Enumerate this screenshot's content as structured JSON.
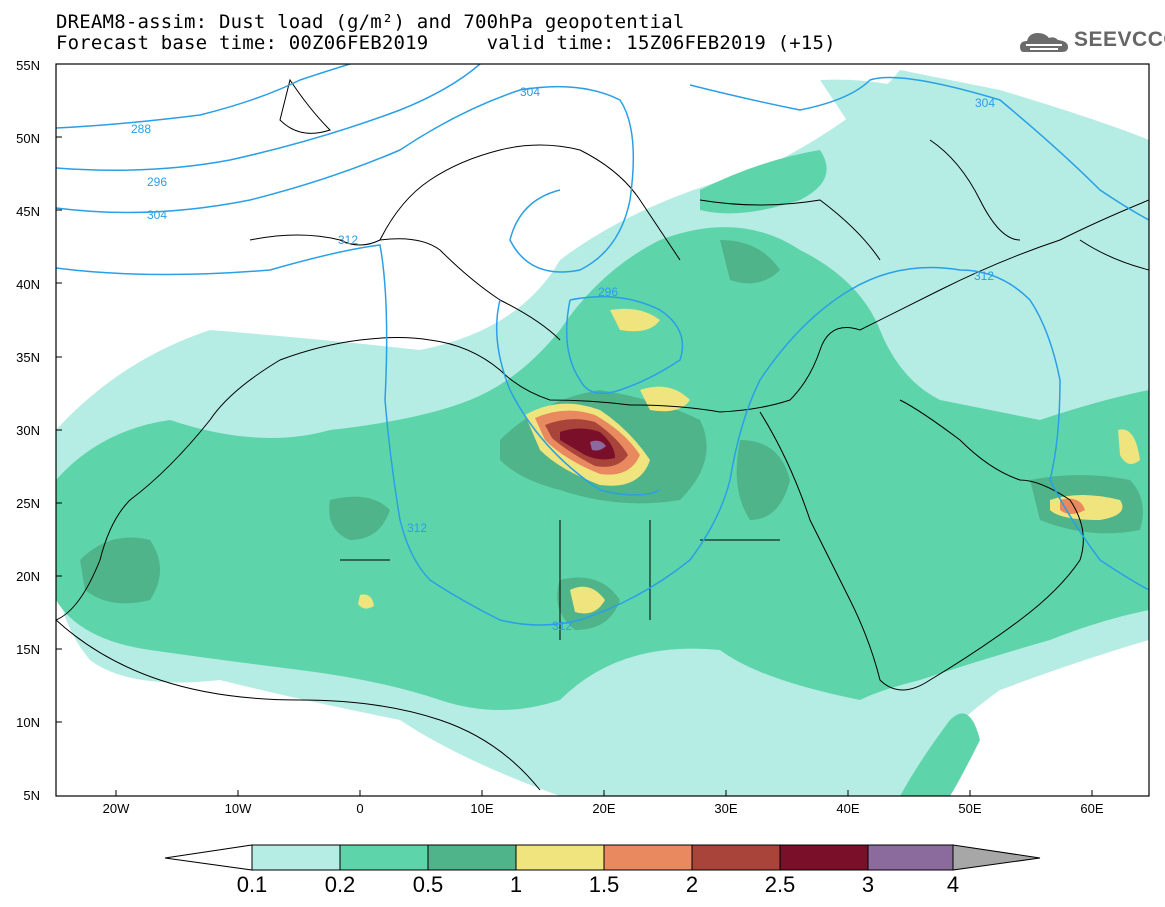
{
  "header": {
    "title_line1": "DREAM8-assim: Dust load (g/m²) and 700hPa geopotential",
    "title_line2": "Forecast base time: 00Z06FEB2019     valid time: 15Z06FEB2019 (+15)",
    "logo_text": "SEEVCCC"
  },
  "axes": {
    "lat_labels": [
      "55N",
      "50N",
      "45N",
      "40N",
      "35N",
      "30N",
      "25N",
      "20N",
      "15N",
      "10N",
      "5N"
    ],
    "lon_labels": [
      "20W",
      "10W",
      "0",
      "10E",
      "20E",
      "30E",
      "40E",
      "50E",
      "60E"
    ]
  },
  "contours": {
    "labels": [
      "288",
      "296",
      "304",
      "312",
      "296",
      "304",
      "312",
      "304",
      "312",
      "312"
    ],
    "line_color": "#2a9fe6"
  },
  "colorbar": {
    "ticks": [
      "0.1",
      "0.2",
      "0.5",
      "1",
      "1.5",
      "2",
      "2.5",
      "3",
      "4"
    ],
    "colors": [
      "#b5ece3",
      "#5ed4aa",
      "#4fb48a",
      "#f0e47e",
      "#e8895f",
      "#a8443a",
      "#7a0f2a",
      "#8b6a9e",
      "#a7a7a7"
    ]
  },
  "icons": {
    "logo": "cloud-logo-icon"
  }
}
